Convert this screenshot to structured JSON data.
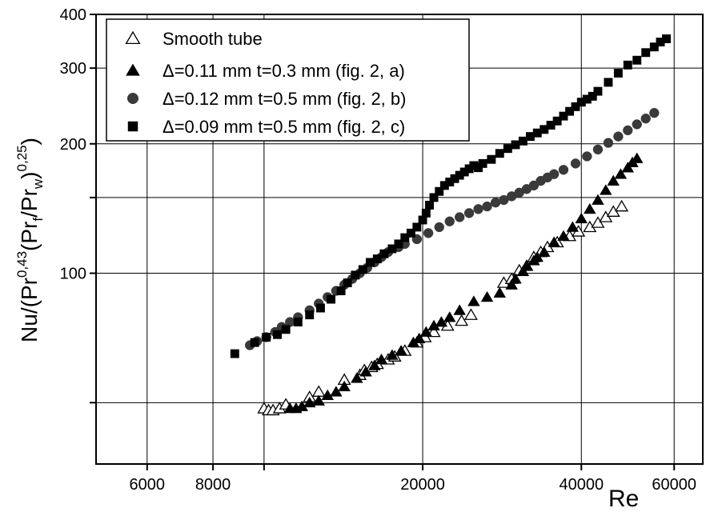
{
  "chart_data": {
    "type": "scatter",
    "xlabel": "Re",
    "ylabel": {
      "pre": "Nu/(Pr",
      "exp1": "0,43",
      "mid1": "(Pr",
      "sub1": "f",
      "mid2": "/Pr",
      "sub2": "w",
      "post": ")",
      "exp2": "0,25",
      "end": ")"
    },
    "x_scale": "log",
    "y_scale": "log",
    "xlim": [
      4800,
      68000
    ],
    "ylim": [
      36,
      400
    ],
    "x_ticks": [
      {
        "value": 6000,
        "label": "6000"
      },
      {
        "value": 8000,
        "label": "8000"
      },
      {
        "value": 20000,
        "label": "20000"
      },
      {
        "value": 40000,
        "label": "40000"
      },
      {
        "value": 60000,
        "label": "60000"
      }
    ],
    "x_unlabeled_ticks": [
      10000
    ],
    "y_ticks": [
      {
        "value": 100,
        "label": "100"
      },
      {
        "value": 200,
        "label": "200"
      },
      {
        "value": 300,
        "label": "300"
      },
      {
        "value": 400,
        "label": "400"
      }
    ],
    "y_unlabeled_ticks": [
      50,
      150
    ],
    "grid": true,
    "legend_position": "top-left",
    "series": [
      {
        "name": "Smooth tube",
        "marker": "triangle-open",
        "color": "#000000",
        "points": [
          [
            10000,
            48.5
          ],
          [
            10200,
            48
          ],
          [
            10400,
            48
          ],
          [
            10700,
            48.5
          ],
          [
            11000,
            49.5
          ],
          [
            12200,
            51.5
          ],
          [
            12700,
            53
          ],
          [
            14200,
            56.5
          ],
          [
            15200,
            58
          ],
          [
            15500,
            59.5
          ],
          [
            16000,
            60.5
          ],
          [
            16400,
            61.5
          ],
          [
            17200,
            63
          ],
          [
            17700,
            64
          ],
          [
            18500,
            66
          ],
          [
            19500,
            69
          ],
          [
            20200,
            71
          ],
          [
            21000,
            73
          ],
          [
            22300,
            75.5
          ],
          [
            23700,
            77.5
          ],
          [
            24700,
            80
          ],
          [
            28500,
            95
          ],
          [
            29500,
            97
          ],
          [
            30500,
            101.5
          ],
          [
            31500,
            104
          ],
          [
            32500,
            109
          ],
          [
            33500,
            112
          ],
          [
            34500,
            115
          ],
          [
            36000,
            118
          ],
          [
            38000,
            122
          ],
          [
            39500,
            125
          ],
          [
            41500,
            128
          ],
          [
            43000,
            131
          ],
          [
            44500,
            135
          ],
          [
            46000,
            139
          ],
          [
            47700,
            143
          ]
        ]
      },
      {
        "name": "Δ=0.11 mm t=0.3 mm (fig. 2, a)",
        "marker": "triangle-filled",
        "color": "#000000",
        "points": [
          [
            11200,
            48.5
          ],
          [
            11500,
            48.5
          ],
          [
            11800,
            49
          ],
          [
            12200,
            50
          ],
          [
            12700,
            50.5
          ],
          [
            13200,
            52
          ],
          [
            13700,
            53
          ],
          [
            14200,
            54.5
          ],
          [
            15000,
            57
          ],
          [
            15600,
            59
          ],
          [
            16200,
            61
          ],
          [
            16700,
            63
          ],
          [
            17500,
            64.5
          ],
          [
            18200,
            66
          ],
          [
            19200,
            69
          ],
          [
            19700,
            70.5
          ],
          [
            20300,
            73
          ],
          [
            21000,
            75.5
          ],
          [
            21700,
            77
          ],
          [
            22500,
            79
          ],
          [
            23500,
            82
          ],
          [
            25000,
            86
          ],
          [
            26500,
            88
          ],
          [
            28000,
            90
          ],
          [
            29500,
            94
          ],
          [
            30000,
            97
          ],
          [
            31000,
            101
          ],
          [
            31500,
            104
          ],
          [
            32500,
            107
          ],
          [
            33000,
            109
          ],
          [
            34000,
            112
          ],
          [
            35500,
            118
          ],
          [
            37000,
            122
          ],
          [
            38500,
            128
          ],
          [
            40000,
            134
          ],
          [
            41500,
            141
          ],
          [
            43000,
            148
          ],
          [
            44500,
            156
          ],
          [
            46000,
            164
          ],
          [
            47500,
            170
          ],
          [
            49000,
            176
          ],
          [
            50000,
            181
          ],
          [
            51000,
            185
          ]
        ]
      },
      {
        "name": "Δ=0.12 mm t=0.5 mm (fig. 2, b)",
        "marker": "circle-filled",
        "color": "#000000",
        "points": [
          [
            9400,
            68
          ],
          [
            9700,
            69.5
          ],
          [
            10100,
            71
          ],
          [
            10500,
            73
          ],
          [
            10800,
            75
          ],
          [
            11200,
            77
          ],
          [
            11600,
            79
          ],
          [
            12200,
            82
          ],
          [
            12700,
            85
          ],
          [
            13200,
            88
          ],
          [
            13700,
            91
          ],
          [
            14200,
            94
          ],
          [
            14700,
            97
          ],
          [
            15200,
            100
          ],
          [
            15700,
            103
          ],
          [
            16200,
            106
          ],
          [
            16700,
            109
          ],
          [
            17200,
            112
          ],
          [
            18000,
            115
          ],
          [
            18500,
            117
          ],
          [
            19500,
            120
          ],
          [
            20500,
            124
          ],
          [
            21500,
            128
          ],
          [
            22500,
            132
          ],
          [
            23500,
            135
          ],
          [
            24500,
            138
          ],
          [
            25500,
            141
          ],
          [
            26500,
            143
          ],
          [
            27500,
            146
          ],
          [
            28500,
            148
          ],
          [
            29500,
            151
          ],
          [
            30500,
            154
          ],
          [
            31500,
            157
          ],
          [
            32500,
            160
          ],
          [
            33500,
            164
          ],
          [
            34500,
            167
          ],
          [
            35500,
            170
          ],
          [
            37000,
            174
          ],
          [
            39000,
            180
          ],
          [
            41000,
            187
          ],
          [
            43000,
            194
          ],
          [
            45000,
            201
          ],
          [
            47000,
            208
          ],
          [
            49000,
            215
          ],
          [
            51000,
            222
          ],
          [
            53000,
            229
          ],
          [
            55000,
            236
          ]
        ]
      },
      {
        "name": "Δ=0.09 mm t=0.5 mm (fig. 2, c)",
        "marker": "square-filled",
        "color": "#000000",
        "points": [
          [
            8800,
            65
          ],
          [
            9600,
            69
          ],
          [
            10100,
            71
          ],
          [
            10600,
            72
          ],
          [
            11000,
            74
          ],
          [
            11600,
            77
          ],
          [
            12200,
            80
          ],
          [
            12800,
            83
          ],
          [
            13400,
            87
          ],
          [
            14000,
            91
          ],
          [
            14400,
            95
          ],
          [
            14900,
            99
          ],
          [
            15400,
            102
          ],
          [
            15900,
            106
          ],
          [
            16400,
            108
          ],
          [
            16900,
            111
          ],
          [
            17500,
            114
          ],
          [
            18000,
            117
          ],
          [
            18500,
            121
          ],
          [
            19000,
            124
          ],
          [
            19500,
            128
          ],
          [
            20000,
            133
          ],
          [
            20300,
            138
          ],
          [
            20600,
            144
          ],
          [
            21000,
            150
          ],
          [
            21500,
            155
          ],
          [
            22000,
            160
          ],
          [
            22500,
            163
          ],
          [
            23000,
            166
          ],
          [
            23500,
            169
          ],
          [
            24000,
            172
          ],
          [
            24500,
            175
          ],
          [
            25000,
            178
          ],
          [
            25500,
            176
          ],
          [
            26000,
            180
          ],
          [
            27000,
            184
          ],
          [
            28000,
            190
          ],
          [
            29000,
            195
          ],
          [
            30000,
            199
          ],
          [
            31000,
            203
          ],
          [
            32000,
            208
          ],
          [
            33000,
            212
          ],
          [
            34000,
            216
          ],
          [
            35000,
            221
          ],
          [
            36000,
            226
          ],
          [
            37000,
            232
          ],
          [
            38000,
            238
          ],
          [
            39000,
            244
          ],
          [
            40000,
            250
          ],
          [
            41000,
            254
          ],
          [
            42000,
            258
          ],
          [
            43000,
            265
          ],
          [
            45000,
            278
          ],
          [
            47000,
            292
          ],
          [
            49000,
            305
          ],
          [
            51000,
            313
          ],
          [
            53000,
            326
          ],
          [
            55000,
            336
          ],
          [
            56500,
            345
          ],
          [
            58000,
            351
          ]
        ]
      }
    ]
  }
}
